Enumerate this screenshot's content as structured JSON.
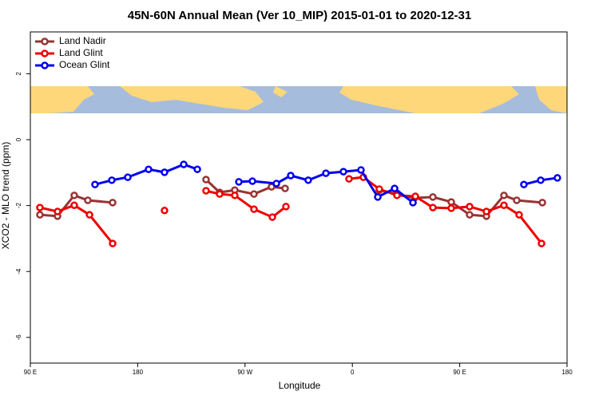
{
  "chart_data": {
    "type": "line",
    "title": "45N-60N Annual Mean (Ver 10_MIP)   2015-01-01 to 2020-12-31",
    "x_label": "Longitude",
    "y_label": "XCO2 - MLO trend (ppm)",
    "xlim": [
      90,
      540
    ],
    "xticks": [
      {
        "value": 90,
        "label": "90 E"
      },
      {
        "value": 180,
        "label": "180"
      },
      {
        "value": 270,
        "label": "90 W"
      },
      {
        "value": 360,
        "label": "0"
      },
      {
        "value": 450,
        "label": "90 E"
      },
      {
        "value": 540,
        "label": "180"
      }
    ],
    "ylim": [
      -6.78,
      3.27
    ],
    "yticks": [
      -6,
      -4,
      -2,
      0,
      2
    ],
    "legend": "top-left",
    "series": [
      {
        "name": "Land Nadir",
        "color": "#993333",
        "x": [
          98.0,
          112.8,
          126.8,
          138.2,
          159.0,
          null,
          237.3,
          248.7,
          261.4,
          277.5,
          292.2,
          303.6,
          null,
          382.6,
          397.4,
          412.1,
          427.5,
          442.9,
          458.3,
          472.4,
          487.1,
          497.8,
          519.3
        ],
        "values": [
          -2.28,
          -2.32,
          -1.69,
          -1.84,
          -1.91,
          null,
          -1.21,
          -1.6,
          -1.53,
          -1.65,
          -1.43,
          -1.48,
          null,
          -1.53,
          -1.65,
          -1.77,
          -1.74,
          -1.89,
          -2.28,
          -2.32,
          -1.69,
          -1.84,
          -1.91
        ]
      },
      {
        "name": "Land Glint",
        "color": "#ee0000",
        "x": [
          98.0,
          112.8,
          126.8,
          139.6,
          159.0,
          null,
          202.5,
          null,
          237.3,
          248.7,
          261.4,
          277.5,
          292.9,
          304.3,
          null,
          357.2,
          369.2,
          382.6,
          397.4,
          412.8,
          427.5,
          442.9,
          458.3,
          472.4,
          487.1,
          499.8,
          518.6
        ],
        "values": [
          -2.06,
          -2.18,
          -1.99,
          -2.28,
          -3.15,
          null,
          -2.15,
          null,
          -1.55,
          -1.65,
          -1.69,
          -2.11,
          -2.35,
          -2.03,
          null,
          -1.19,
          -1.14,
          -1.5,
          -1.69,
          -1.72,
          -2.06,
          -2.08,
          -2.03,
          -2.18,
          -1.99,
          -2.28,
          -3.15
        ]
      },
      {
        "name": "Ocean Glint",
        "color": "#0000ee",
        "x": [
          144.2,
          158.3,
          171.7,
          189.1,
          202.5,
          218.6,
          230.0,
          null,
          264.8,
          276.2,
          296.3,
          308.3,
          323.0,
          337.8,
          352.5,
          367.2,
          381.3,
          395.4,
          410.8,
          null,
          503.8,
          517.9,
          531.9
        ],
        "values": [
          -1.36,
          -1.23,
          -1.14,
          -0.9,
          -0.99,
          -0.75,
          -0.9,
          null,
          -1.28,
          -1.26,
          -1.33,
          -1.09,
          -1.23,
          -1.02,
          -0.97,
          -0.92,
          -1.74,
          -1.48,
          -1.91,
          null,
          -1.36,
          -1.23,
          -1.16
        ]
      }
    ]
  }
}
